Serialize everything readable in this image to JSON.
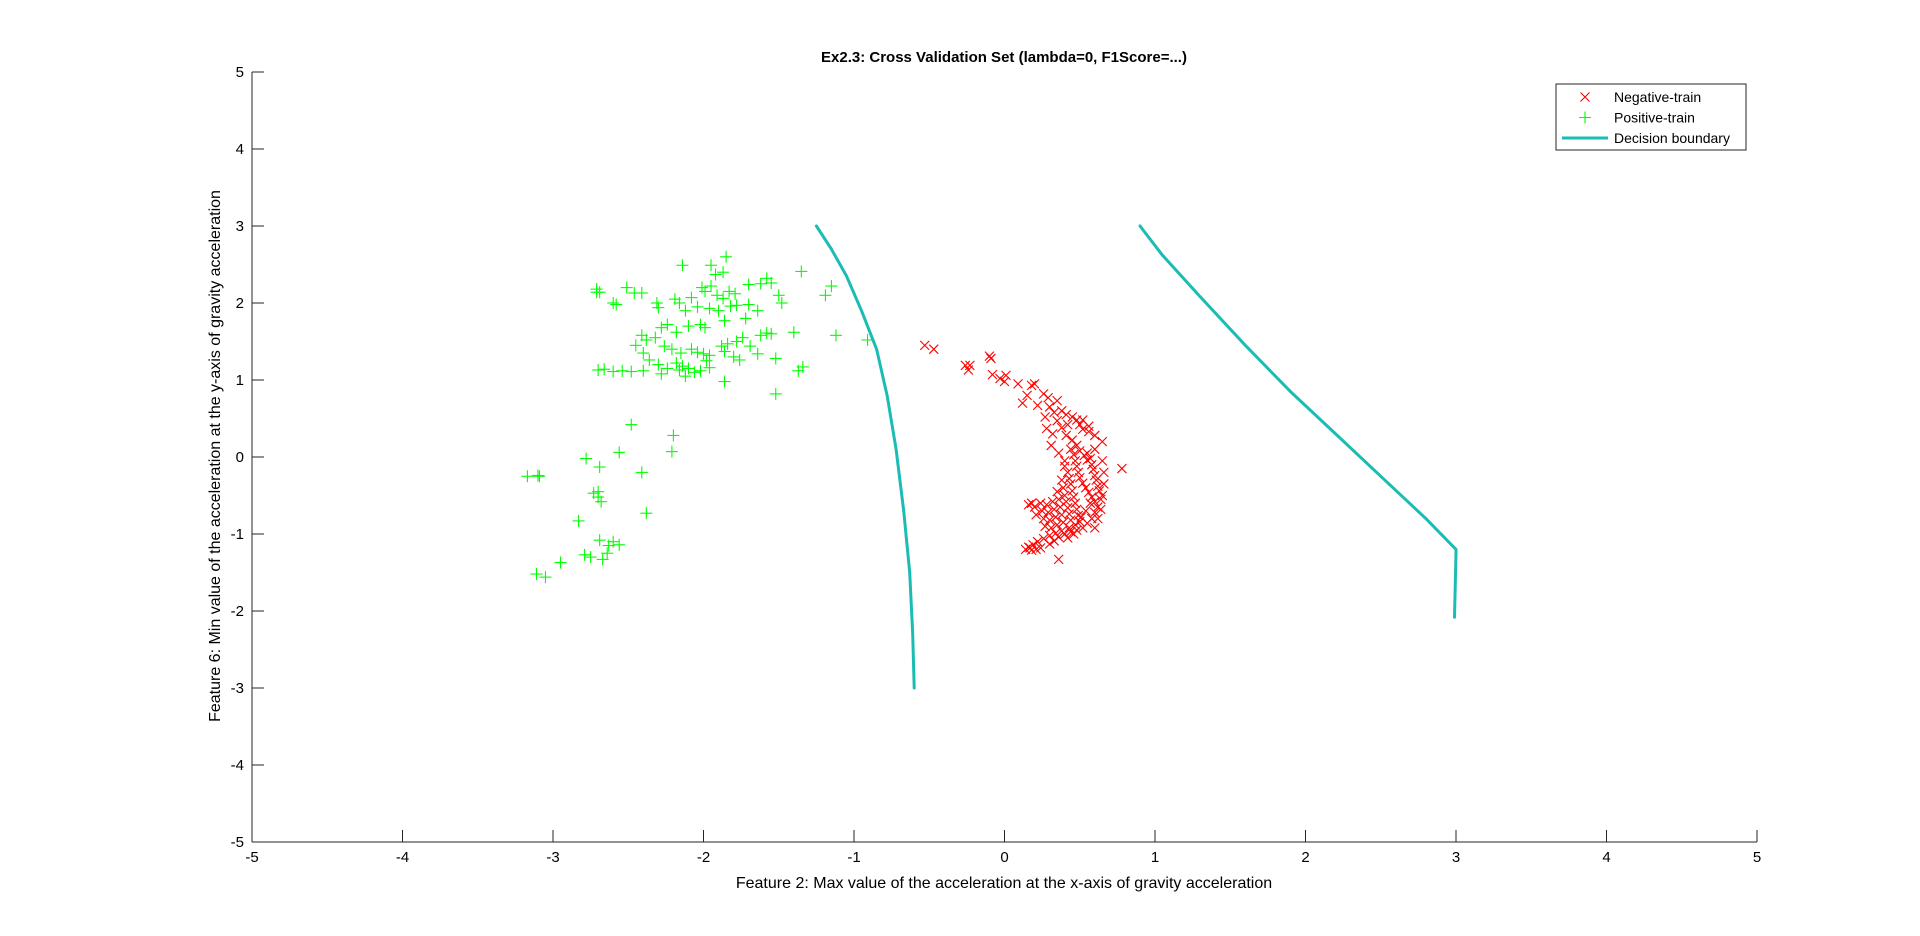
{
  "chart_data": {
    "type": "scatter",
    "title": "Ex2.3: Cross Validation Set (lambda=0, F1Score=...)",
    "xlabel": "Feature 2: Max value of the acceleration at the x-axis of gravity acceleration",
    "ylabel": "Feature 6: Min value of the acceleration at the y-axis of gravity acceleration",
    "xlim": [
      -5,
      5
    ],
    "ylim": [
      -5,
      5
    ],
    "xticks": [
      "-5",
      "-4",
      "-3",
      "-2",
      "-1",
      "0",
      "1",
      "2",
      "3",
      "4",
      "5"
    ],
    "yticks": [
      "-5",
      "-4",
      "-3",
      "-2",
      "-1",
      "0",
      "1",
      "2",
      "3",
      "4",
      "5"
    ],
    "grid": false,
    "legend_position": "top-right",
    "series": [
      {
        "name": "Negative-train",
        "marker": "x",
        "color": "#ff0000",
        "points": [
          [
            -0.53,
            1.45
          ],
          [
            -0.47,
            1.4
          ],
          [
            -0.26,
            1.19
          ],
          [
            -0.23,
            1.19
          ],
          [
            -0.24,
            1.13
          ],
          [
            -0.1,
            1.31
          ],
          [
            -0.09,
            1.28
          ],
          [
            -0.08,
            1.07
          ],
          [
            -0.03,
            1.02
          ],
          [
            0.01,
            1.06
          ],
          [
            0.0,
            0.98
          ],
          [
            0.09,
            0.95
          ],
          [
            0.18,
            0.93
          ],
          [
            0.2,
            0.95
          ],
          [
            0.15,
            0.8
          ],
          [
            0.12,
            0.7
          ],
          [
            0.26,
            0.82
          ],
          [
            0.29,
            0.77
          ],
          [
            0.35,
            0.73
          ],
          [
            0.22,
            0.67
          ],
          [
            0.3,
            0.65
          ],
          [
            0.33,
            0.58
          ],
          [
            0.38,
            0.6
          ],
          [
            0.41,
            0.55
          ],
          [
            0.45,
            0.52
          ],
          [
            0.48,
            0.48
          ],
          [
            0.5,
            0.42
          ],
          [
            0.52,
            0.36
          ],
          [
            0.56,
            0.33
          ],
          [
            0.6,
            0.28
          ],
          [
            0.65,
            0.2
          ],
          [
            0.27,
            0.52
          ],
          [
            0.35,
            0.47
          ],
          [
            0.28,
            0.37
          ],
          [
            0.32,
            0.3
          ],
          [
            0.41,
            0.28
          ],
          [
            0.45,
            0.22
          ],
          [
            0.48,
            0.15
          ],
          [
            0.5,
            0.08
          ],
          [
            0.53,
            0.02
          ],
          [
            0.55,
            -0.04
          ],
          [
            0.58,
            -0.1
          ],
          [
            0.78,
            -0.15
          ],
          [
            0.44,
            0.1
          ],
          [
            0.46,
            0.03
          ],
          [
            0.47,
            -0.05
          ],
          [
            0.48,
            -0.12
          ],
          [
            0.49,
            -0.2
          ],
          [
            0.5,
            -0.27
          ],
          [
            0.52,
            -0.34
          ],
          [
            0.54,
            -0.4
          ],
          [
            0.56,
            -0.46
          ],
          [
            0.58,
            -0.52
          ],
          [
            0.6,
            -0.58
          ],
          [
            0.62,
            -0.65
          ],
          [
            0.6,
            -0.72
          ],
          [
            0.58,
            -0.8
          ],
          [
            0.55,
            -0.86
          ],
          [
            0.52,
            -0.92
          ],
          [
            0.48,
            -0.95
          ],
          [
            0.44,
            -0.97
          ],
          [
            0.4,
            -1.0
          ],
          [
            0.36,
            -1.04
          ],
          [
            0.33,
            -1.09
          ],
          [
            0.3,
            -1.13
          ],
          [
            0.4,
            -0.12
          ],
          [
            0.42,
            -0.2
          ],
          [
            0.43,
            -0.28
          ],
          [
            0.44,
            -0.35
          ],
          [
            0.45,
            -0.44
          ],
          [
            0.46,
            -0.52
          ],
          [
            0.47,
            -0.6
          ],
          [
            0.48,
            -0.68
          ],
          [
            0.49,
            -0.76
          ],
          [
            0.5,
            -0.84
          ],
          [
            0.38,
            -0.3
          ],
          [
            0.39,
            -0.4
          ],
          [
            0.4,
            -0.5
          ],
          [
            0.41,
            -0.58
          ],
          [
            0.42,
            -0.66
          ],
          [
            0.43,
            -0.74
          ],
          [
            0.44,
            -0.82
          ],
          [
            0.35,
            -0.45
          ],
          [
            0.36,
            -0.55
          ],
          [
            0.37,
            -0.65
          ],
          [
            0.38,
            -0.75
          ],
          [
            0.39,
            -0.85
          ],
          [
            0.32,
            -0.58
          ],
          [
            0.33,
            -0.68
          ],
          [
            0.34,
            -0.78
          ],
          [
            0.35,
            -0.88
          ],
          [
            0.28,
            -0.62
          ],
          [
            0.29,
            -0.72
          ],
          [
            0.3,
            -0.82
          ],
          [
            0.31,
            -0.92
          ],
          [
            0.24,
            -0.6
          ],
          [
            0.25,
            -0.7
          ],
          [
            0.26,
            -0.8
          ],
          [
            0.27,
            -0.9
          ],
          [
            0.2,
            -0.65
          ],
          [
            0.21,
            -0.75
          ],
          [
            0.18,
            -0.6
          ],
          [
            0.16,
            -0.62
          ],
          [
            0.55,
            0.05
          ],
          [
            0.57,
            -0.02
          ],
          [
            0.59,
            -0.16
          ],
          [
            0.61,
            -0.3
          ],
          [
            0.63,
            -0.44
          ],
          [
            0.64,
            -0.55
          ],
          [
            0.62,
            -0.38
          ],
          [
            0.6,
            -0.24
          ],
          [
            0.57,
            -0.6
          ],
          [
            0.54,
            -0.7
          ],
          [
            0.51,
            -0.78
          ],
          [
            0.47,
            -0.88
          ],
          [
            0.43,
            -0.92
          ],
          [
            0.38,
            -0.96
          ],
          [
            0.34,
            -0.99
          ],
          [
            0.3,
            -1.02
          ],
          [
            0.26,
            -1.06
          ],
          [
            0.22,
            -1.1
          ],
          [
            0.19,
            -1.14
          ],
          [
            0.16,
            -1.17
          ],
          [
            0.18,
            -1.21
          ],
          [
            0.21,
            -1.2
          ],
          [
            0.24,
            -1.18
          ],
          [
            0.17,
            -1.18
          ],
          [
            0.14,
            -1.2
          ],
          [
            0.36,
            -1.33
          ],
          [
            0.4,
            -0.05
          ],
          [
            0.36,
            0.05
          ],
          [
            0.31,
            0.15
          ],
          [
            0.42,
            0.42
          ],
          [
            0.38,
            0.38
          ],
          [
            0.52,
            0.48
          ],
          [
            0.56,
            0.4
          ],
          [
            0.6,
            0.1
          ],
          [
            0.65,
            -0.05
          ],
          [
            0.66,
            -0.2
          ],
          [
            0.66,
            -0.35
          ],
          [
            0.65,
            -0.5
          ],
          [
            0.64,
            -0.68
          ],
          [
            0.62,
            -0.8
          ],
          [
            0.6,
            -0.92
          ],
          [
            0.46,
            -1.0
          ],
          [
            0.42,
            -1.05
          ]
        ]
      },
      {
        "name": "Positive-train",
        "marker": "+",
        "color": "#00ff00",
        "points": [
          [
            -2.14,
            2.49
          ],
          [
            -1.95,
            2.49
          ],
          [
            -1.85,
            2.6
          ],
          [
            -1.92,
            2.37
          ],
          [
            -1.87,
            2.4
          ],
          [
            -1.7,
            2.24
          ],
          [
            -1.58,
            2.32
          ],
          [
            -1.55,
            2.26
          ],
          [
            -1.62,
            2.25
          ],
          [
            -1.35,
            2.41
          ],
          [
            -1.15,
            2.22
          ],
          [
            -1.19,
            2.1
          ],
          [
            -2.71,
            2.18
          ],
          [
            -2.69,
            2.14
          ],
          [
            -2.71,
            2.14
          ],
          [
            -2.51,
            2.2
          ],
          [
            -2.46,
            2.13
          ],
          [
            -2.41,
            2.13
          ],
          [
            -2.31,
            2.0
          ],
          [
            -2.19,
            2.05
          ],
          [
            -2.16,
            2.0
          ],
          [
            -2.08,
            2.07
          ],
          [
            -2.01,
            2.2
          ],
          [
            -1.99,
            2.15
          ],
          [
            -1.95,
            2.22
          ],
          [
            -1.91,
            2.1
          ],
          [
            -1.87,
            2.06
          ],
          [
            -1.83,
            2.15
          ],
          [
            -1.79,
            2.12
          ],
          [
            -2.6,
            2.0
          ],
          [
            -2.58,
            1.98
          ],
          [
            -2.3,
            1.94
          ],
          [
            -2.12,
            1.9
          ],
          [
            -2.04,
            1.95
          ],
          [
            -1.96,
            1.93
          ],
          [
            -1.9,
            1.9
          ],
          [
            -1.82,
            1.96
          ],
          [
            -1.78,
            1.97
          ],
          [
            -1.7,
            1.98
          ],
          [
            -1.64,
            1.9
          ],
          [
            -1.5,
            2.1
          ],
          [
            -1.48,
            2.0
          ],
          [
            -2.28,
            1.68
          ],
          [
            -2.24,
            1.72
          ],
          [
            -2.18,
            1.62
          ],
          [
            -2.1,
            1.7
          ],
          [
            -2.02,
            1.72
          ],
          [
            -1.99,
            1.68
          ],
          [
            -1.86,
            1.77
          ],
          [
            -1.72,
            1.8
          ],
          [
            -1.55,
            1.6
          ],
          [
            -1.58,
            1.61
          ],
          [
            -1.62,
            1.58
          ],
          [
            -1.4,
            1.62
          ],
          [
            -1.12,
            1.58
          ],
          [
            -0.91,
            1.52
          ],
          [
            -2.41,
            1.58
          ],
          [
            -2.38,
            1.52
          ],
          [
            -2.32,
            1.55
          ],
          [
            -2.26,
            1.44
          ],
          [
            -2.21,
            1.4
          ],
          [
            -2.15,
            1.35
          ],
          [
            -2.08,
            1.4
          ],
          [
            -2.04,
            1.36
          ],
          [
            -2.0,
            1.34
          ],
          [
            -1.96,
            1.32
          ],
          [
            -1.88,
            1.44
          ],
          [
            -1.84,
            1.47
          ],
          [
            -1.78,
            1.5
          ],
          [
            -1.74,
            1.55
          ],
          [
            -1.69,
            1.44
          ],
          [
            -1.64,
            1.34
          ],
          [
            -1.52,
            1.28
          ],
          [
            -2.45,
            1.45
          ],
          [
            -2.4,
            1.35
          ],
          [
            -2.36,
            1.26
          ],
          [
            -2.3,
            1.2
          ],
          [
            -2.24,
            1.15
          ],
          [
            -2.18,
            1.22
          ],
          [
            -2.14,
            1.18
          ],
          [
            -2.1,
            1.15
          ],
          [
            -2.06,
            1.1
          ],
          [
            -2.02,
            1.12
          ],
          [
            -1.98,
            1.25
          ],
          [
            -1.86,
            1.37
          ],
          [
            -1.8,
            1.3
          ],
          [
            -1.76,
            1.26
          ],
          [
            -2.7,
            1.13
          ],
          [
            -2.66,
            1.14
          ],
          [
            -2.6,
            1.11
          ],
          [
            -2.54,
            1.12
          ],
          [
            -2.48,
            1.11
          ],
          [
            -2.4,
            1.12
          ],
          [
            -2.28,
            1.08
          ],
          [
            -2.16,
            1.13
          ],
          [
            -2.12,
            1.05
          ],
          [
            -1.96,
            1.16
          ],
          [
            -1.86,
            0.98
          ],
          [
            -1.52,
            0.82
          ],
          [
            -1.37,
            1.12
          ],
          [
            -1.34,
            1.17
          ],
          [
            -2.48,
            0.42
          ],
          [
            -2.2,
            0.28
          ],
          [
            -2.21,
            0.07
          ],
          [
            -2.56,
            0.06
          ],
          [
            -2.78,
            -0.02
          ],
          [
            -2.69,
            -0.13
          ],
          [
            -2.41,
            -0.2
          ],
          [
            -3.17,
            -0.25
          ],
          [
            -3.1,
            -0.24
          ],
          [
            -3.09,
            -0.25
          ],
          [
            -2.83,
            -0.83
          ],
          [
            -2.73,
            -0.47
          ],
          [
            -2.7,
            -0.45
          ],
          [
            -2.7,
            -0.52
          ],
          [
            -2.68,
            -0.58
          ],
          [
            -2.38,
            -0.73
          ],
          [
            -2.69,
            -1.08
          ],
          [
            -2.63,
            -1.15
          ],
          [
            -2.6,
            -1.1
          ],
          [
            -2.56,
            -1.14
          ],
          [
            -2.64,
            -1.25
          ],
          [
            -2.67,
            -1.33
          ],
          [
            -2.79,
            -1.27
          ],
          [
            -2.75,
            -1.3
          ],
          [
            -2.95,
            -1.37
          ],
          [
            -3.11,
            -1.52
          ],
          [
            -3.05,
            -1.56
          ]
        ]
      }
    ],
    "decision_boundary": {
      "name": "Decision boundary",
      "color": "#1abcb4",
      "curves": [
        [
          [
            -1.25,
            3.0
          ],
          [
            -1.15,
            2.7
          ],
          [
            -1.05,
            2.35
          ],
          [
            -0.95,
            1.9
          ],
          [
            -0.85,
            1.4
          ],
          [
            -0.78,
            0.8
          ],
          [
            -0.72,
            0.1
          ],
          [
            -0.67,
            -0.7
          ],
          [
            -0.63,
            -1.5
          ],
          [
            -0.61,
            -2.3
          ],
          [
            -0.6,
            -3.0
          ]
        ],
        [
          [
            0.9,
            3.0
          ],
          [
            1.05,
            2.62
          ],
          [
            1.3,
            2.08
          ],
          [
            1.6,
            1.45
          ],
          [
            1.9,
            0.85
          ],
          [
            2.2,
            0.3
          ],
          [
            2.5,
            -0.25
          ],
          [
            2.8,
            -0.8
          ],
          [
            3.0,
            -1.2
          ],
          [
            3.0,
            -1.25
          ],
          [
            2.99,
            -2.08
          ]
        ]
      ]
    }
  }
}
